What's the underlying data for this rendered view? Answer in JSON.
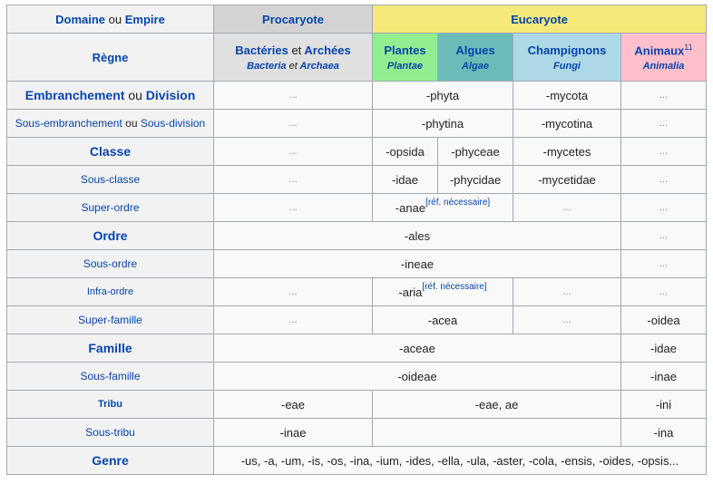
{
  "header": {
    "domaine": "Domaine",
    "ou": "ou",
    "empire": "Empire",
    "procaryote": "Procaryote",
    "eucaryote": "Eucaryote",
    "regne": "Règne",
    "bacteries": "Bactéries",
    "et": "et",
    "archees": "Archées",
    "bacteria": "Bacteria",
    "archaea": "Archaea",
    "plantes": "Plantes",
    "plantae": "Plantae",
    "algues": "Algues",
    "algae": "Algae",
    "champignons": "Champignons",
    "fungi": "Fungi",
    "animaux": "Animaux",
    "animaux_note": "11",
    "animalia": "Animalia"
  },
  "empty": "...",
  "ref_needed": "[réf. nécessaire]",
  "rows": {
    "embranchement": {
      "rank_a": "Embranchement",
      "ou": "ou",
      "rank_b": "Division",
      "plantes_algues": "-phyta",
      "champ": "-mycota"
    },
    "sous_embranchement": {
      "rank_a": "Sous-embranchement",
      "ou": "ou",
      "rank_b": "Sous-division",
      "plantes_algues": "-phytina",
      "champ": "-mycotina"
    },
    "classe": {
      "rank": "Classe",
      "plantes": "-opsida",
      "algues": "-phyceae",
      "champ": "-mycetes"
    },
    "sous_classe": {
      "rank": "Sous-classe",
      "plantes": "-idae",
      "algues": "-phycidae",
      "champ": "-mycetidae"
    },
    "super_ordre": {
      "rank": "Super-ordre",
      "plantes_algues": "-anae"
    },
    "ordre": {
      "rank": "Ordre",
      "span": "-ales"
    },
    "sous_ordre": {
      "rank": "Sous-ordre",
      "span": "-ineae"
    },
    "infra_ordre": {
      "rank": "Infra-ordre",
      "plantes_algues": "-aria"
    },
    "super_famille": {
      "rank": "Super-famille",
      "plantes_algues": "-acea",
      "anim": "-oidea"
    },
    "famille": {
      "rank": "Famille",
      "span": "-aceae",
      "anim": "-idae"
    },
    "sous_famille": {
      "rank": "Sous-famille",
      "span": "-oideae",
      "anim": "-inae"
    },
    "tribu": {
      "rank": "Tribu",
      "bact": "-eae",
      "euk": "-eae, ae",
      "anim": "-ini"
    },
    "sous_tribu": {
      "rank": "Sous-tribu",
      "bact": "-inae",
      "anim": "-ina"
    },
    "genre": {
      "rank": "Genre",
      "span": "-us, -a, -um, -is, -os, -ina, -ium, -ides, -ella, -ula, -aster, -cola, -ensis, -oides, -opsis..."
    }
  }
}
